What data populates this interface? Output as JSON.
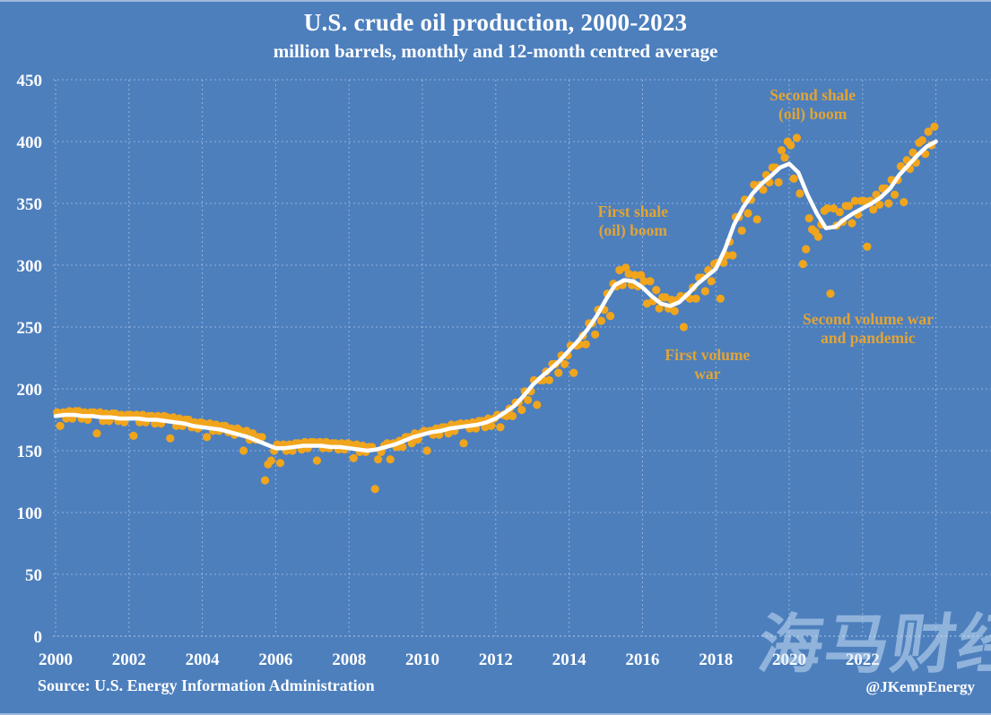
{
  "page": {
    "watermark": "海马财经"
  },
  "colors": {
    "background": "#4D7FBD",
    "dot": "#F0A51D",
    "line": "#FFFFFF",
    "annotation_text": "#E2A434",
    "grid": "rgba(235,242,250,0.45)",
    "axis_line": "rgba(245,250,255,0.6)",
    "tick_text": "#FFFFFF",
    "title_text": "#FFFFFF",
    "watermark_text": "rgba(212,231,249,0.5)",
    "edge_line": "rgba(255,255,255,0.45)"
  },
  "chart_data": {
    "type": "scatter+line",
    "title": "U.S. crude oil production, 2000-2023",
    "subtitle": "million barrels, monthly and 12-month centred average",
    "source": "Source: U.S. Energy Information Administration",
    "credit": "@JKempEnergy",
    "xlim": [
      1999.8,
      2025.5
    ],
    "ylim": [
      0,
      450
    ],
    "grid": "dashed",
    "legend": "none",
    "y_ticks": [
      0,
      50,
      100,
      150,
      200,
      250,
      300,
      350,
      400,
      450
    ],
    "x_ticks": [
      2000,
      2002,
      2004,
      2006,
      2008,
      2010,
      2012,
      2014,
      2016,
      2018,
      2020,
      2022
    ],
    "x_gridline_years": [
      2000,
      2002,
      2004,
      2006,
      2008,
      2010,
      2012,
      2014,
      2016,
      2018,
      2020,
      2022,
      2024
    ],
    "series": [
      {
        "name": "monthly production (million barrels)",
        "type": "scatter",
        "start_year": 2000,
        "per_year_values": [
          [
            181,
            170,
            181,
            176,
            182,
            176,
            182,
            182,
            176,
            181,
            175,
            181
          ],
          [
            181,
            164,
            181,
            174,
            180,
            174,
            180,
            180,
            174,
            179,
            173,
            179
          ],
          [
            179,
            162,
            179,
            173,
            179,
            173,
            178,
            178,
            172,
            178,
            172,
            178
          ],
          [
            177,
            160,
            177,
            170,
            176,
            170,
            175,
            175,
            169,
            173,
            168,
            173
          ],
          [
            172,
            161,
            172,
            166,
            171,
            166,
            170,
            170,
            165,
            168,
            163,
            168
          ],
          [
            166,
            150,
            166,
            159,
            164,
            159,
            161,
            161,
            126,
            139,
            142,
            150
          ],
          [
            155,
            140,
            155,
            150,
            155,
            150,
            156,
            156,
            151,
            157,
            152,
            157
          ],
          [
            157,
            142,
            157,
            152,
            157,
            152,
            156,
            156,
            151,
            156,
            151,
            156
          ],
          [
            155,
            144,
            155,
            149,
            154,
            149,
            153,
            153,
            119,
            143,
            149,
            154
          ],
          [
            156,
            143,
            156,
            153,
            158,
            153,
            161,
            161,
            156,
            164,
            159,
            164
          ],
          [
            166,
            150,
            166,
            163,
            168,
            163,
            169,
            169,
            164,
            171,
            166,
            171
          ],
          [
            172,
            156,
            172,
            168,
            173,
            168,
            174,
            174,
            169,
            176,
            170,
            176
          ],
          [
            179,
            169,
            179,
            178,
            184,
            178,
            189,
            189,
            183,
            198,
            191,
            198
          ],
          [
            207,
            187,
            207,
            207,
            214,
            207,
            220,
            220,
            213,
            227,
            220,
            227
          ],
          [
            235,
            213,
            235,
            236,
            243,
            236,
            253,
            253,
            244,
            264,
            255,
            264
          ],
          [
            277,
            259,
            285,
            283,
            296,
            284,
            298,
            293,
            284,
            292,
            283,
            292
          ],
          [
            287,
            269,
            287,
            271,
            280,
            265,
            274,
            274,
            265,
            272,
            263,
            272
          ],
          [
            275,
            250,
            275,
            273,
            282,
            273,
            290,
            290,
            279,
            296,
            287,
            301
          ],
          [
            302,
            273,
            302,
            308,
            319,
            308,
            339,
            339,
            328,
            353,
            342,
            353
          ],
          [
            365,
            337,
            365,
            361,
            373,
            367,
            379,
            379,
            367,
            393,
            387,
            400
          ],
          [
            397,
            370,
            403,
            358,
            301,
            313,
            338,
            329,
            327,
            323,
            333,
            344
          ],
          [
            346,
            277,
            346,
            332,
            343,
            335,
            348,
            348,
            334,
            352,
            341,
            352
          ],
          [
            352,
            315,
            352,
            345,
            357,
            349,
            362,
            362,
            350,
            369,
            357,
            369
          ],
          [
            380,
            351,
            385,
            378,
            391,
            383,
            399,
            401,
            390,
            408,
            397,
            412
          ]
        ]
      },
      {
        "name": "12-month centred average",
        "type": "line",
        "start": 2000,
        "step": 0.25,
        "values": [
          178,
          179,
          179,
          178,
          178,
          177,
          177,
          176,
          176,
          176,
          175,
          175,
          174,
          173,
          172,
          170,
          169,
          168,
          167,
          165,
          163,
          161,
          158,
          155,
          152,
          152,
          153,
          154,
          154,
          154,
          153,
          153,
          152,
          151,
          150,
          151,
          153,
          155,
          158,
          161,
          163,
          165,
          166,
          168,
          169,
          170,
          171,
          173,
          176,
          181,
          186,
          194,
          203,
          210,
          216,
          223,
          231,
          239,
          248,
          259,
          272,
          284,
          288,
          287,
          282,
          275,
          269,
          267,
          270,
          277,
          285,
          291,
          297,
          313,
          333,
          347,
          358,
          366,
          372,
          379,
          382,
          375,
          357,
          342,
          330,
          331,
          337,
          342,
          346,
          350,
          355,
          362,
          373,
          381,
          389,
          396,
          400
        ]
      }
    ],
    "annotations": [
      {
        "lines": [
          "Second shale",
          "(oil) boom"
        ],
        "x": 2020.64,
        "y": 430
      },
      {
        "lines": [
          "First shale",
          "(oil) boom"
        ],
        "x": 2015.74,
        "y": 336
      },
      {
        "lines": [
          "First volume",
          "war"
        ],
        "x": 2017.77,
        "y": 220
      },
      {
        "lines": [
          "Second volume war",
          "and pandemic"
        ],
        "x": 2022.15,
        "y": 249
      }
    ]
  }
}
